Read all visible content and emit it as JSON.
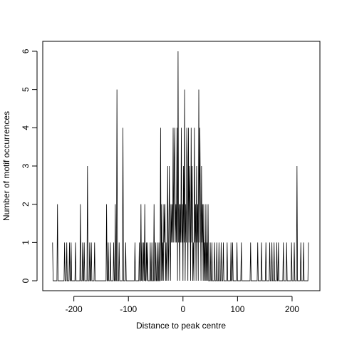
{
  "chart_data": {
    "type": "line",
    "x_label": "Distance to peak centre",
    "y_label": "Number of motif occurrences",
    "color": "#000000",
    "xlim": [
      -257,
      251
    ],
    "ylim": [
      -0.26,
      6.26
    ],
    "xticks": [
      -200,
      -100,
      0,
      100,
      200
    ],
    "yticks": [
      0,
      1,
      2,
      3,
      4,
      5,
      6
    ],
    "x": [
      -239,
      -238,
      -231,
      -230,
      -229,
      -218,
      -217,
      -216,
      -214,
      -213,
      -212,
      -209,
      -208,
      -207,
      -206,
      -205,
      -204,
      -198,
      -197,
      -196,
      -189,
      -188,
      -187,
      -185,
      -184,
      -183,
      -182,
      -181,
      -180,
      -176,
      -175,
      -174,
      -172,
      -171,
      -170,
      -169,
      -168,
      -167,
      -163,
      -162,
      -161,
      -141,
      -140,
      -139,
      -138,
      -137,
      -136,
      -134,
      -133,
      -132,
      -128,
      -127,
      -126,
      -125,
      -124,
      -123,
      -122,
      -121,
      -120,
      -118,
      -117,
      -116,
      -111,
      -110,
      -109,
      -106,
      -105,
      -104,
      -89,
      -88,
      -87,
      -81,
      -80,
      -79,
      -78,
      -77,
      -76,
      -75,
      -74,
      -73,
      -72,
      -71,
      -70,
      -69,
      -68,
      -67,
      -66,
      -65,
      -64,
      -61,
      -60,
      -59,
      -58,
      -57,
      -56,
      -54,
      -53,
      -52,
      -51,
      -50,
      -49,
      -48,
      -47,
      -46,
      -45,
      -44,
      -43,
      -42,
      -41,
      -40,
      -39,
      -38,
      -37,
      -36,
      -35,
      -34,
      -33,
      -32,
      -31,
      -30,
      -29,
      -28,
      -27,
      -26,
      -25,
      -24,
      -23,
      -22,
      -21,
      -20,
      -19,
      -18,
      -17,
      -16,
      -15,
      -14,
      -13,
      -12,
      -11,
      -10,
      -9,
      -8,
      -7,
      -6,
      -5,
      -4,
      -3,
      -2,
      -1,
      0,
      1,
      2,
      3,
      4,
      5,
      6,
      7,
      8,
      9,
      10,
      11,
      12,
      13,
      14,
      15,
      16,
      17,
      18,
      19,
      20,
      21,
      22,
      23,
      24,
      25,
      26,
      27,
      28,
      29,
      30,
      31,
      32,
      33,
      34,
      35,
      36,
      37,
      38,
      39,
      40,
      41,
      42,
      43,
      44,
      45,
      46,
      47,
      49,
      50,
      51,
      52,
      53,
      54,
      57,
      58,
      59,
      61,
      62,
      63,
      65,
      66,
      67,
      69,
      70,
      71,
      73,
      74,
      75,
      80,
      81,
      82,
      87,
      88,
      89,
      90,
      91,
      92,
      98,
      99,
      100,
      106,
      107,
      108,
      123,
      124,
      125,
      136,
      137,
      138,
      143,
      144,
      145,
      151,
      152,
      153,
      158,
      159,
      160,
      162,
      163,
      164,
      166,
      167,
      168,
      171,
      172,
      173,
      174,
      175,
      176,
      183,
      184,
      185,
      189,
      190,
      191,
      198,
      199,
      200,
      203,
      204,
      205,
      208,
      209,
      210,
      215,
      216,
      217,
      220,
      221,
      222,
      229,
      230
    ],
    "values": [
      1,
      0,
      0,
      2,
      0,
      0,
      1,
      0,
      0,
      1,
      0,
      0,
      1,
      0,
      0,
      1,
      0,
      0,
      1,
      0,
      0,
      2,
      0,
      0,
      1,
      0,
      0,
      1,
      0,
      0,
      3,
      0,
      0,
      1,
      0,
      0,
      1,
      0,
      0,
      1,
      0,
      0,
      2,
      0,
      0,
      1,
      0,
      0,
      1,
      0,
      0,
      1,
      0,
      0,
      2,
      0,
      0,
      5,
      0,
      0,
      1,
      0,
      0,
      4,
      0,
      0,
      1,
      0,
      0,
      1,
      0,
      0,
      1,
      0,
      0,
      2,
      0,
      1,
      0,
      0,
      1,
      0,
      2,
      0,
      0,
      1,
      0,
      1,
      0,
      0,
      1,
      0,
      0,
      1,
      0,
      0,
      2,
      0,
      0,
      1,
      0,
      0,
      1,
      0,
      0,
      1,
      0,
      0,
      4,
      0,
      2,
      0,
      1,
      0,
      2,
      1,
      2,
      0,
      1,
      0,
      1,
      3,
      0,
      1,
      3,
      1,
      0,
      2,
      1,
      2,
      1,
      4,
      1,
      3,
      4,
      1,
      2,
      1,
      4,
      0,
      6,
      1,
      2,
      0,
      2,
      1,
      4,
      1,
      2,
      0,
      3,
      1,
      5,
      0,
      2,
      1,
      4,
      3,
      0,
      4,
      1,
      3,
      2,
      0,
      4,
      1,
      3,
      0,
      1,
      0,
      4,
      1,
      2,
      0,
      3,
      1,
      2,
      0,
      5,
      1,
      4,
      2,
      0,
      3,
      1,
      2,
      0,
      2,
      0,
      1,
      0,
      2,
      0,
      1,
      0,
      2,
      0,
      0,
      1,
      0,
      0,
      1,
      0,
      0,
      1,
      0,
      0,
      1,
      0,
      0,
      1,
      0,
      0,
      1,
      0,
      0,
      1,
      0,
      0,
      1,
      0,
      0,
      1,
      0,
      0,
      1,
      0,
      0,
      1,
      0,
      0,
      1,
      0,
      0,
      1,
      0,
      0,
      1,
      0,
      0,
      1,
      0,
      0,
      1,
      0,
      0,
      1,
      0,
      0,
      1,
      0,
      0,
      1,
      0,
      0,
      1,
      0,
      0,
      1,
      0,
      0,
      1,
      0,
      0,
      1,
      0,
      0,
      1,
      0,
      0,
      1,
      0,
      0,
      3,
      0,
      0,
      1,
      0,
      0,
      1,
      0,
      0,
      1
    ]
  }
}
